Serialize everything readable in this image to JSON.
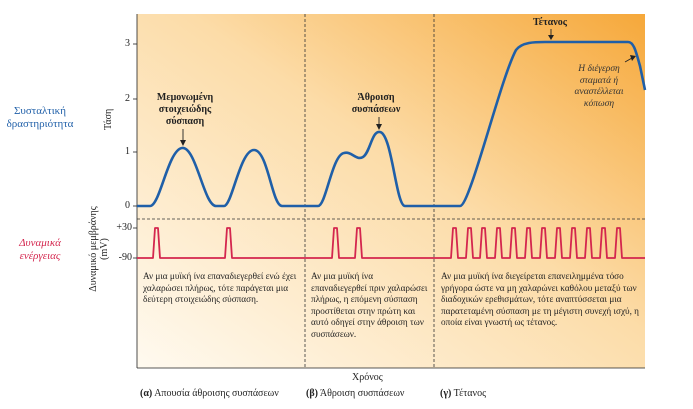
{
  "left_labels": {
    "contraction": "Συσταλτική δραστηριότητα",
    "tension_axis": "Τάση",
    "action_potentials": "Δυναμικά ενέργειας",
    "membrane_potential_axis": "Δυναμικό μεμβράνης (mV)"
  },
  "y_ticks_tension": [
    "3",
    "2",
    "1",
    "0"
  ],
  "y_ticks_potential": [
    "+30",
    "-90"
  ],
  "annotations": {
    "single_twitch": "Μεμονωμένη στοιχειώδης σύσπαση",
    "summation": "Άθροιση συσπάσεων",
    "tetanus": "Τέτανος",
    "stimulation_stops": "Η διέγερση σταματά ή αναστέλλεται κόπωση"
  },
  "captions": {
    "a": "Αν μια μυϊκή ίνα επαναδιεγερθεί ενώ έχει χαλαρώσει πλήρως, τότε παράγεται μια δεύτερη στοιχειώδης σύσπαση.",
    "b": "Αν μια μυϊκή ίνα επαναδιεγερθεί πριν χαλαρώσει πλήρως, η επόμενη σύσπαση προστίθεται στην πρώτη και αυτό οδηγεί στην άθροιση των συσπάσεων.",
    "c": "Αν μια μυϊκή ίνα διεγείρεται επανειλημμένα τόσο γρήγορα ώστε να μη χαλαρώνει καθόλου μεταξύ των διαδοχικών ερεθισμάτων, τότε αναπτύσσεται μια παρατεταμένη σύσπαση με τη μέγιστη συνεχή ισχύ, η οποία είναι γνωστή ως τέτανος."
  },
  "x_axis_label": "Χρόνος",
  "footer": {
    "a_letter": "(α)",
    "a_text": "Απουσία άθροισης συσπάσεων",
    "b_letter": "(β)",
    "b_text": "Άθροιση συσπάσεων",
    "c_letter": "(γ)",
    "c_text": "Τέτανος"
  },
  "colors": {
    "tension_curve": "#1f5fa8",
    "action_potential": "#d4264e",
    "panel_gradient_start": "#fdf3df",
    "panel_gradient_end": "#f6a83a"
  }
}
